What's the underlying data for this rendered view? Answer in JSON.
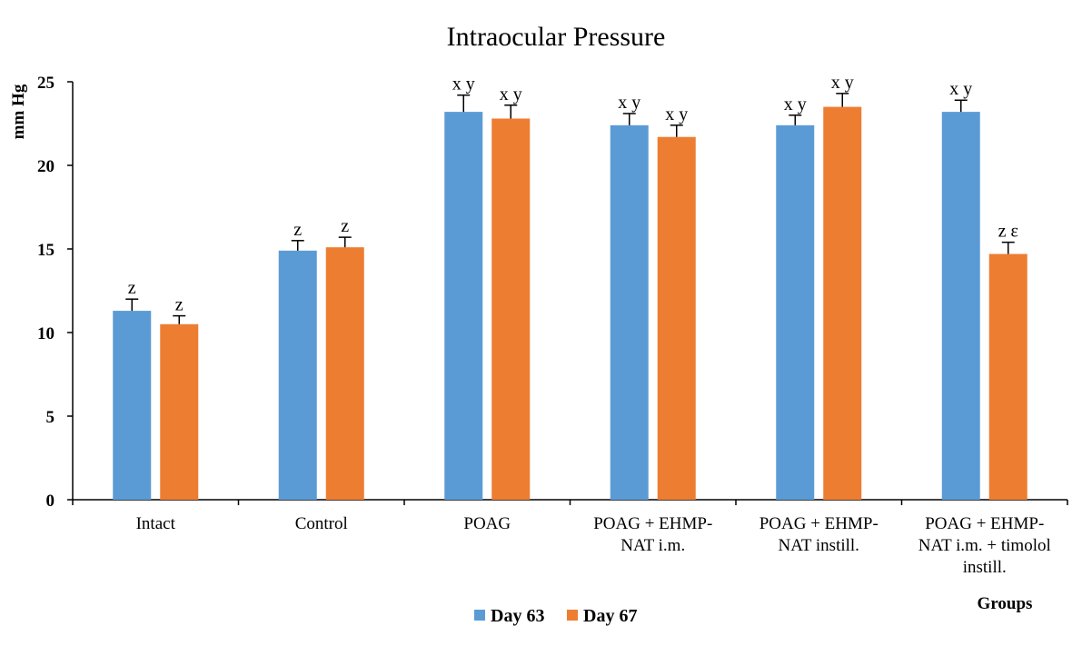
{
  "chart_data": {
    "type": "bar",
    "title": "Intraocular Pressure",
    "ylabel": "mm Hg",
    "xlabel": "Groups",
    "ylim": [
      0,
      25
    ],
    "yticks": [
      0,
      5,
      10,
      15,
      20,
      25
    ],
    "categories": [
      [
        "Intact"
      ],
      [
        "Control"
      ],
      [
        "POAG"
      ],
      [
        "POAG + EHMP-",
        "NAT i.m."
      ],
      [
        "POAG + EHMP-",
        "NAT instill."
      ],
      [
        "POAG + EHMP-",
        "NAT i.m. + timolol",
        "instill."
      ]
    ],
    "series": [
      {
        "name": "Day 63",
        "color": "#5B9BD5",
        "values": [
          11.3,
          14.9,
          23.2,
          22.4,
          22.4,
          23.2
        ],
        "errors": [
          0.7,
          0.6,
          1.0,
          0.7,
          0.6,
          0.7
        ],
        "annotations": [
          "z",
          "z",
          "x y",
          "x y",
          "x y",
          "x y"
        ]
      },
      {
        "name": "Day 67",
        "color": "#ED7D31",
        "values": [
          10.5,
          15.1,
          22.8,
          21.7,
          23.5,
          14.7
        ],
        "errors": [
          0.5,
          0.6,
          0.8,
          0.7,
          0.8,
          0.7
        ],
        "annotations": [
          "z",
          "z",
          "x y",
          "x y",
          "x y",
          "z ε"
        ]
      }
    ],
    "grid": false,
    "legend_position": "bottom"
  }
}
